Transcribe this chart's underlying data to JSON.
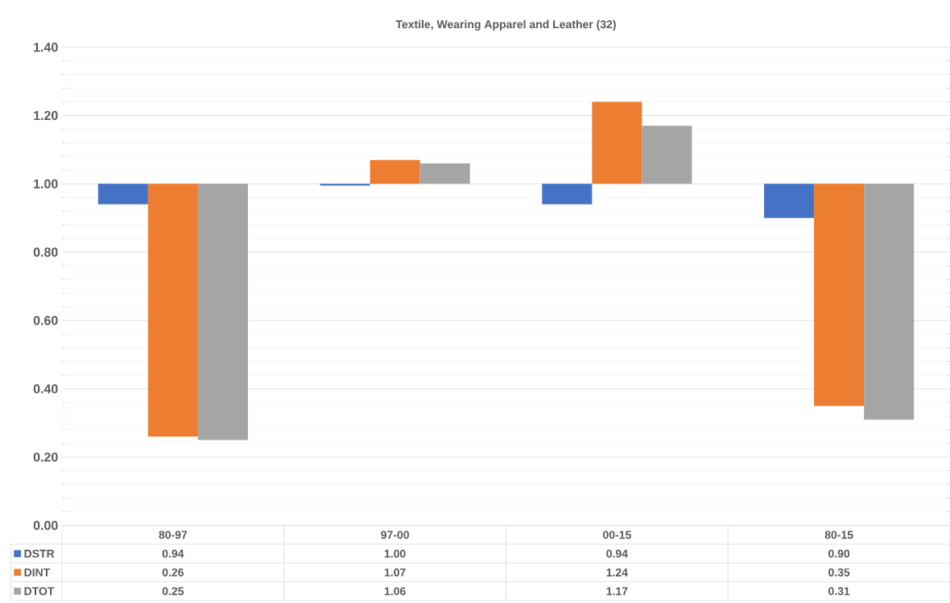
{
  "chart_data": {
    "type": "bar",
    "title": "Textile, Wearing Apparel and Leather (32)",
    "categories": [
      "80-97",
      "97-00",
      "00-15",
      "80-15"
    ],
    "series": [
      {
        "name": "DSTR",
        "color": "#4472c4",
        "base": [
          1.0,
          1.0,
          1.0,
          1.0
        ],
        "values": [
          -0.06,
          -0.005,
          -0.06,
          -0.1
        ],
        "value_labels": [
          "0.94",
          "1.00",
          "0.94",
          "0.90"
        ]
      },
      {
        "name": "DINT",
        "color": "#ed7d31",
        "base": [
          1.0,
          1.0,
          1.0,
          1.0
        ],
        "values": [
          -0.74,
          0.07,
          0.24,
          -0.65
        ],
        "value_labels": [
          "0.26",
          "1.07",
          "1.24",
          "0.35"
        ]
      },
      {
        "name": "DTOT",
        "color": "#a5a5a5",
        "base": [
          1.0,
          1.0,
          1.0,
          1.0
        ],
        "values": [
          -0.75,
          0.06,
          0.17,
          -0.69
        ],
        "value_labels": [
          "0.25",
          "1.06",
          "1.17",
          "0.31"
        ]
      }
    ],
    "ylim": [
      0,
      1.4
    ],
    "yticks": [
      {
        "value": 0,
        "label": "0.00"
      },
      {
        "value": 0.2,
        "label": "0.20"
      },
      {
        "value": 0.4,
        "label": "0.40"
      },
      {
        "value": 0.6,
        "label": "0.60"
      },
      {
        "value": 0.8,
        "label": "0.80"
      },
      {
        "value": 1.0,
        "label": "1.00"
      },
      {
        "value": 1.2,
        "label": "1.20"
      },
      {
        "value": 1.4,
        "label": "1.40"
      }
    ],
    "grid": "y",
    "legend": "bottom",
    "tick_labels": "y"
  }
}
